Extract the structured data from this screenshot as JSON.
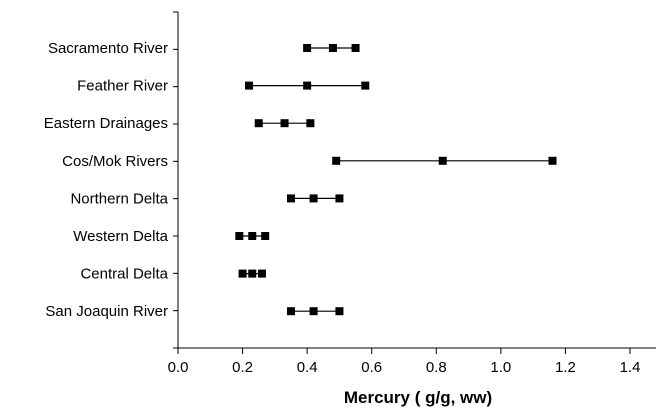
{
  "chart_data": {
    "type": "scatter",
    "xlabel": "Mercury (  g/g, ww)",
    "xlim": [
      0.0,
      1.4
    ],
    "x_ticks": [
      "0.0",
      "0.2",
      "0.4",
      "0.6",
      "0.8",
      "1.0",
      "1.2",
      "1.4"
    ],
    "categories": [
      "Sacramento River",
      "Feather River",
      "Eastern Drainages",
      "Cos/Mok Rivers",
      "Northern Delta",
      "Western Delta",
      "Central Delta",
      "San Joaquin River"
    ],
    "values": [
      [
        0.4,
        0.48,
        0.55
      ],
      [
        0.22,
        0.4,
        0.58
      ],
      [
        0.25,
        0.33,
        0.41
      ],
      [
        0.49,
        0.82,
        1.16
      ],
      [
        0.35,
        0.42,
        0.5
      ],
      [
        0.19,
        0.23,
        0.27
      ],
      [
        0.2,
        0.23,
        0.26
      ],
      [
        0.35,
        0.42,
        0.5
      ]
    ],
    "grid": false,
    "legend": "none",
    "marker_color": "#000000"
  }
}
